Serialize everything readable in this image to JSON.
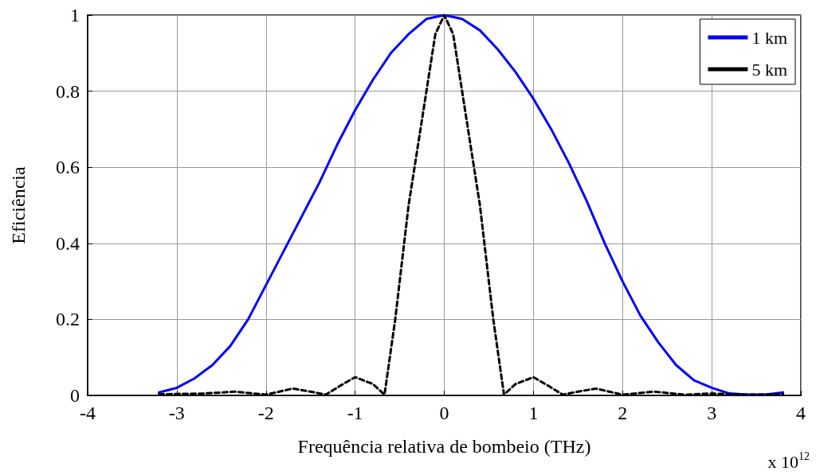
{
  "chart_data": {
    "type": "line",
    "xlabel": "Frequência relativa de bombeio (THz)",
    "ylabel": "Eficiência",
    "annotations": [
      "x 10$^{12}$"
    ],
    "xlim": [
      -4,
      4
    ],
    "xticks": [
      -4,
      -3,
      -2,
      -1,
      0,
      1,
      2,
      3,
      4
    ],
    "ylim": [
      0,
      1
    ],
    "yticks": [
      0,
      0.2,
      0.4,
      0.6,
      0.8,
      1
    ],
    "grid": true,
    "legend": "top right",
    "marker": "none",
    "series": [
      {
        "name": "1 km",
        "color": "#0000ff",
        "line_style": "solid",
        "x": [
          -3.2,
          -3.0,
          -2.8,
          -2.6,
          -2.4,
          -2.2,
          -2.0,
          -1.8,
          -1.6,
          -1.4,
          -1.2,
          -1.0,
          -0.8,
          -0.6,
          -0.4,
          -0.2,
          0,
          0.2,
          0.4,
          0.6,
          0.8,
          1.0,
          1.2,
          1.4,
          1.6,
          1.8,
          2.0,
          2.2,
          2.4,
          2.6,
          2.8,
          3.0,
          3.2,
          3.4,
          3.6,
          3.8
        ],
        "values": [
          0.008,
          0.02,
          0.045,
          0.08,
          0.13,
          0.2,
          0.29,
          0.38,
          0.47,
          0.56,
          0.66,
          0.75,
          0.83,
          0.9,
          0.95,
          0.99,
          1.0,
          0.99,
          0.96,
          0.91,
          0.85,
          0.78,
          0.7,
          0.61,
          0.51,
          0.4,
          0.3,
          0.21,
          0.14,
          0.08,
          0.04,
          0.02,
          0.005,
          0.002,
          0.002,
          0.008
        ]
      },
      {
        "name": "5 km",
        "color": "#000000",
        "line_style": "dashed",
        "x": [
          -3.2,
          -2.7,
          -2.35,
          -2.0,
          -1.85,
          -1.7,
          -1.5,
          -1.33,
          -1.17,
          -1.0,
          -0.8,
          -0.67,
          -0.55,
          -0.4,
          -0.2,
          -0.1,
          0,
          0.1,
          0.2,
          0.4,
          0.55,
          0.67,
          0.8,
          1.0,
          1.17,
          1.33,
          1.5,
          1.7,
          1.85,
          2.0,
          2.35,
          2.7,
          3.0,
          3.4,
          3.8
        ],
        "values": [
          0.003,
          0.005,
          0.01,
          0.002,
          0.01,
          0.018,
          0.01,
          0.002,
          0.025,
          0.048,
          0.03,
          0.002,
          0.2,
          0.5,
          0.8,
          0.95,
          1.0,
          0.95,
          0.8,
          0.5,
          0.2,
          0.002,
          0.03,
          0.048,
          0.025,
          0.002,
          0.01,
          0.018,
          0.01,
          0.002,
          0.01,
          0.002,
          0.005,
          0.002,
          0.003
        ]
      }
    ]
  }
}
